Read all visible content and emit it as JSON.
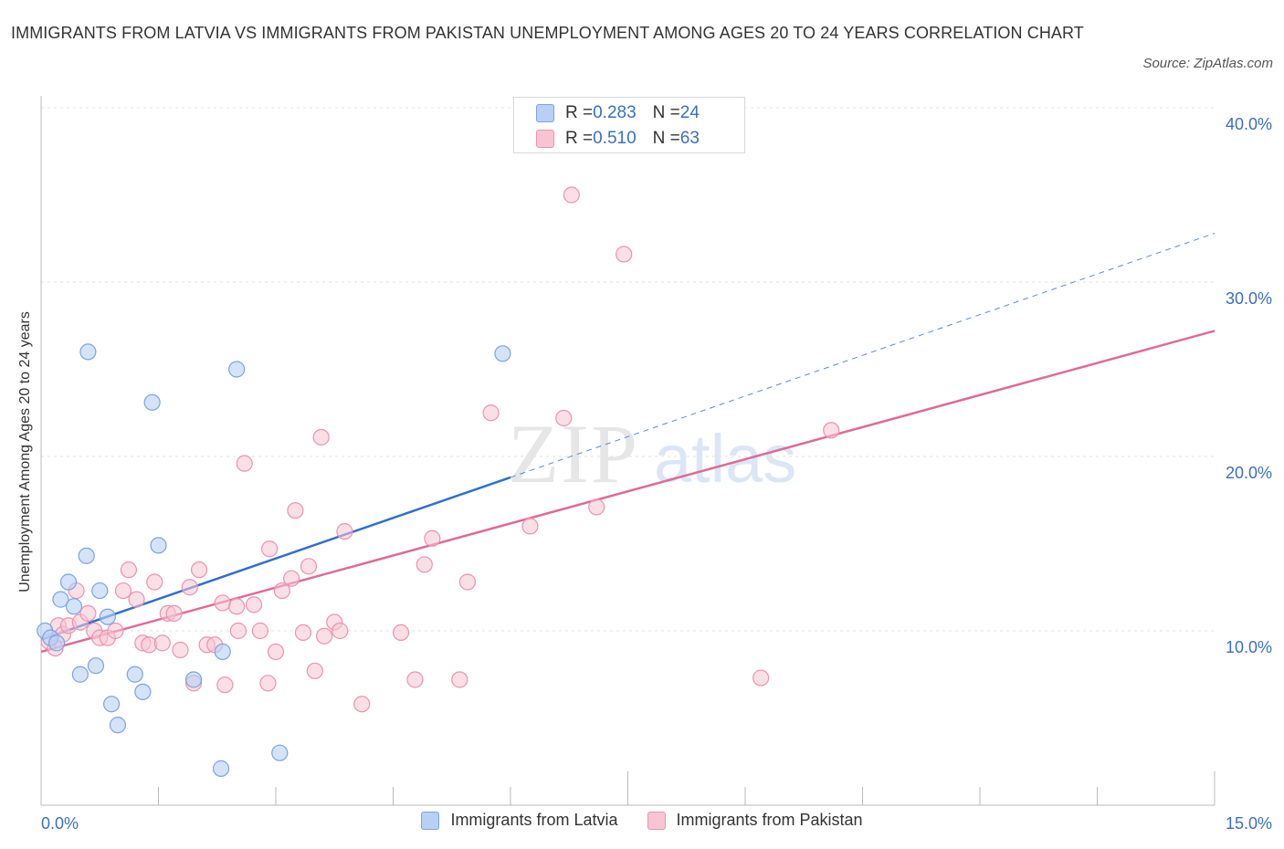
{
  "header": {
    "title": "IMMIGRANTS FROM LATVIA VS IMMIGRANTS FROM PAKISTAN UNEMPLOYMENT AMONG AGES 20 TO 24 YEARS CORRELATION CHART",
    "source": "Source: ZipAtlas.com"
  },
  "watermark": {
    "zip": "ZIP",
    "atlas": "atlas"
  },
  "legend": {
    "latvia": {
      "r_label": "R = ",
      "r_value": "0.283",
      "n_label": "N = ",
      "n_value": "24"
    },
    "pakistan": {
      "r_label": "R = ",
      "r_value": "0.510",
      "n_label": "N = ",
      "n_value": "63"
    }
  },
  "colors": {
    "latvia_fill": "#b8d0f4",
    "latvia_stroke": "#7ba4e0",
    "latvia_line": "#2f6fd0",
    "pakistan_fill": "#f8c4d4",
    "pakistan_stroke": "#eb93b0",
    "pakistan_line": "#e06a96",
    "axis_text": "#3a6fc4",
    "grid": "#e0e0e0"
  },
  "chart_data": {
    "type": "scatter",
    "title": "IMMIGRANTS FROM LATVIA VS IMMIGRANTS FROM PAKISTAN UNEMPLOYMENT AMONG AGES 20 TO 24 YEARS CORRELATION CHART",
    "xlabel": "",
    "ylabel": "Unemployment Among Ages 20 to 24 years",
    "xlim": [
      0,
      15
    ],
    "ylim": [
      0,
      40
    ],
    "x_tick_labels": [
      "0.0%",
      "15.0%"
    ],
    "y_ticks": [
      10,
      20,
      30,
      40
    ],
    "y_tick_labels": [
      "10.0%",
      "20.0%",
      "30.0%",
      "40.0%"
    ],
    "grid": true,
    "legend_placement": "top-center and bottom",
    "series": [
      {
        "name": "Immigrants from Latvia",
        "points": [
          [
            0.05,
            10.0
          ],
          [
            0.12,
            9.6
          ],
          [
            0.2,
            9.3
          ],
          [
            0.25,
            11.8
          ],
          [
            0.35,
            12.8
          ],
          [
            0.42,
            11.4
          ],
          [
            0.5,
            7.5
          ],
          [
            0.58,
            14.3
          ],
          [
            0.6,
            26.0
          ],
          [
            0.7,
            8.0
          ],
          [
            0.75,
            12.3
          ],
          [
            0.85,
            10.8
          ],
          [
            0.9,
            5.8
          ],
          [
            0.98,
            4.6
          ],
          [
            1.2,
            7.5
          ],
          [
            1.3,
            6.5
          ],
          [
            1.42,
            23.1
          ],
          [
            1.5,
            14.9
          ],
          [
            1.95,
            7.2
          ],
          [
            2.3,
            2.1
          ],
          [
            2.32,
            8.8
          ],
          [
            2.5,
            25.0
          ],
          [
            3.05,
            3.0
          ],
          [
            5.9,
            25.9
          ]
        ],
        "trend": {
          "x": [
            0.0,
            6.0
          ],
          "y": [
            9.5,
            18.8
          ],
          "dashed_extension": {
            "x": [
              6.0,
              15.0
            ],
            "y": [
              18.8,
              32.8
            ]
          }
        }
      },
      {
        "name": "Immigrants from Pakistan",
        "points": [
          [
            0.1,
            9.4
          ],
          [
            0.18,
            9.0
          ],
          [
            0.22,
            10.3
          ],
          [
            0.28,
            9.8
          ],
          [
            0.35,
            10.3
          ],
          [
            0.45,
            12.3
          ],
          [
            0.5,
            10.5
          ],
          [
            0.6,
            11.0
          ],
          [
            0.68,
            10.0
          ],
          [
            0.75,
            9.6
          ],
          [
            0.85,
            9.6
          ],
          [
            0.95,
            10.0
          ],
          [
            1.05,
            12.3
          ],
          [
            1.12,
            13.5
          ],
          [
            1.22,
            11.8
          ],
          [
            1.3,
            9.3
          ],
          [
            1.38,
            9.2
          ],
          [
            1.45,
            12.8
          ],
          [
            1.55,
            9.3
          ],
          [
            1.62,
            11.0
          ],
          [
            1.7,
            11.0
          ],
          [
            1.78,
            8.9
          ],
          [
            1.9,
            12.5
          ],
          [
            1.95,
            7.0
          ],
          [
            2.02,
            13.5
          ],
          [
            2.12,
            9.2
          ],
          [
            2.22,
            9.2
          ],
          [
            2.32,
            11.6
          ],
          [
            2.35,
            6.9
          ],
          [
            2.5,
            11.4
          ],
          [
            2.52,
            10.0
          ],
          [
            2.6,
            19.6
          ],
          [
            2.72,
            11.5
          ],
          [
            2.8,
            10.0
          ],
          [
            2.9,
            7.0
          ],
          [
            2.92,
            14.7
          ],
          [
            3.0,
            8.8
          ],
          [
            3.08,
            12.3
          ],
          [
            3.2,
            13.0
          ],
          [
            3.25,
            16.9
          ],
          [
            3.35,
            9.9
          ],
          [
            3.42,
            13.7
          ],
          [
            3.5,
            7.7
          ],
          [
            3.58,
            21.1
          ],
          [
            3.62,
            9.7
          ],
          [
            3.75,
            10.5
          ],
          [
            3.82,
            10.0
          ],
          [
            3.88,
            15.7
          ],
          [
            4.1,
            5.8
          ],
          [
            4.6,
            9.9
          ],
          [
            4.78,
            7.2
          ],
          [
            4.9,
            13.8
          ],
          [
            5.0,
            15.3
          ],
          [
            5.35,
            7.2
          ],
          [
            5.45,
            12.8
          ],
          [
            5.75,
            22.5
          ],
          [
            6.25,
            16.0
          ],
          [
            6.68,
            22.2
          ],
          [
            6.78,
            35.0
          ],
          [
            7.1,
            17.1
          ],
          [
            7.45,
            31.6
          ],
          [
            9.2,
            7.3
          ],
          [
            10.1,
            21.5
          ]
        ],
        "trend": {
          "x": [
            0.0,
            15.0
          ],
          "y": [
            8.8,
            27.2
          ]
        }
      }
    ]
  },
  "bottom_legend": {
    "latvia": "Immigrants from Latvia",
    "pakistan": "Immigrants from Pakistan"
  }
}
